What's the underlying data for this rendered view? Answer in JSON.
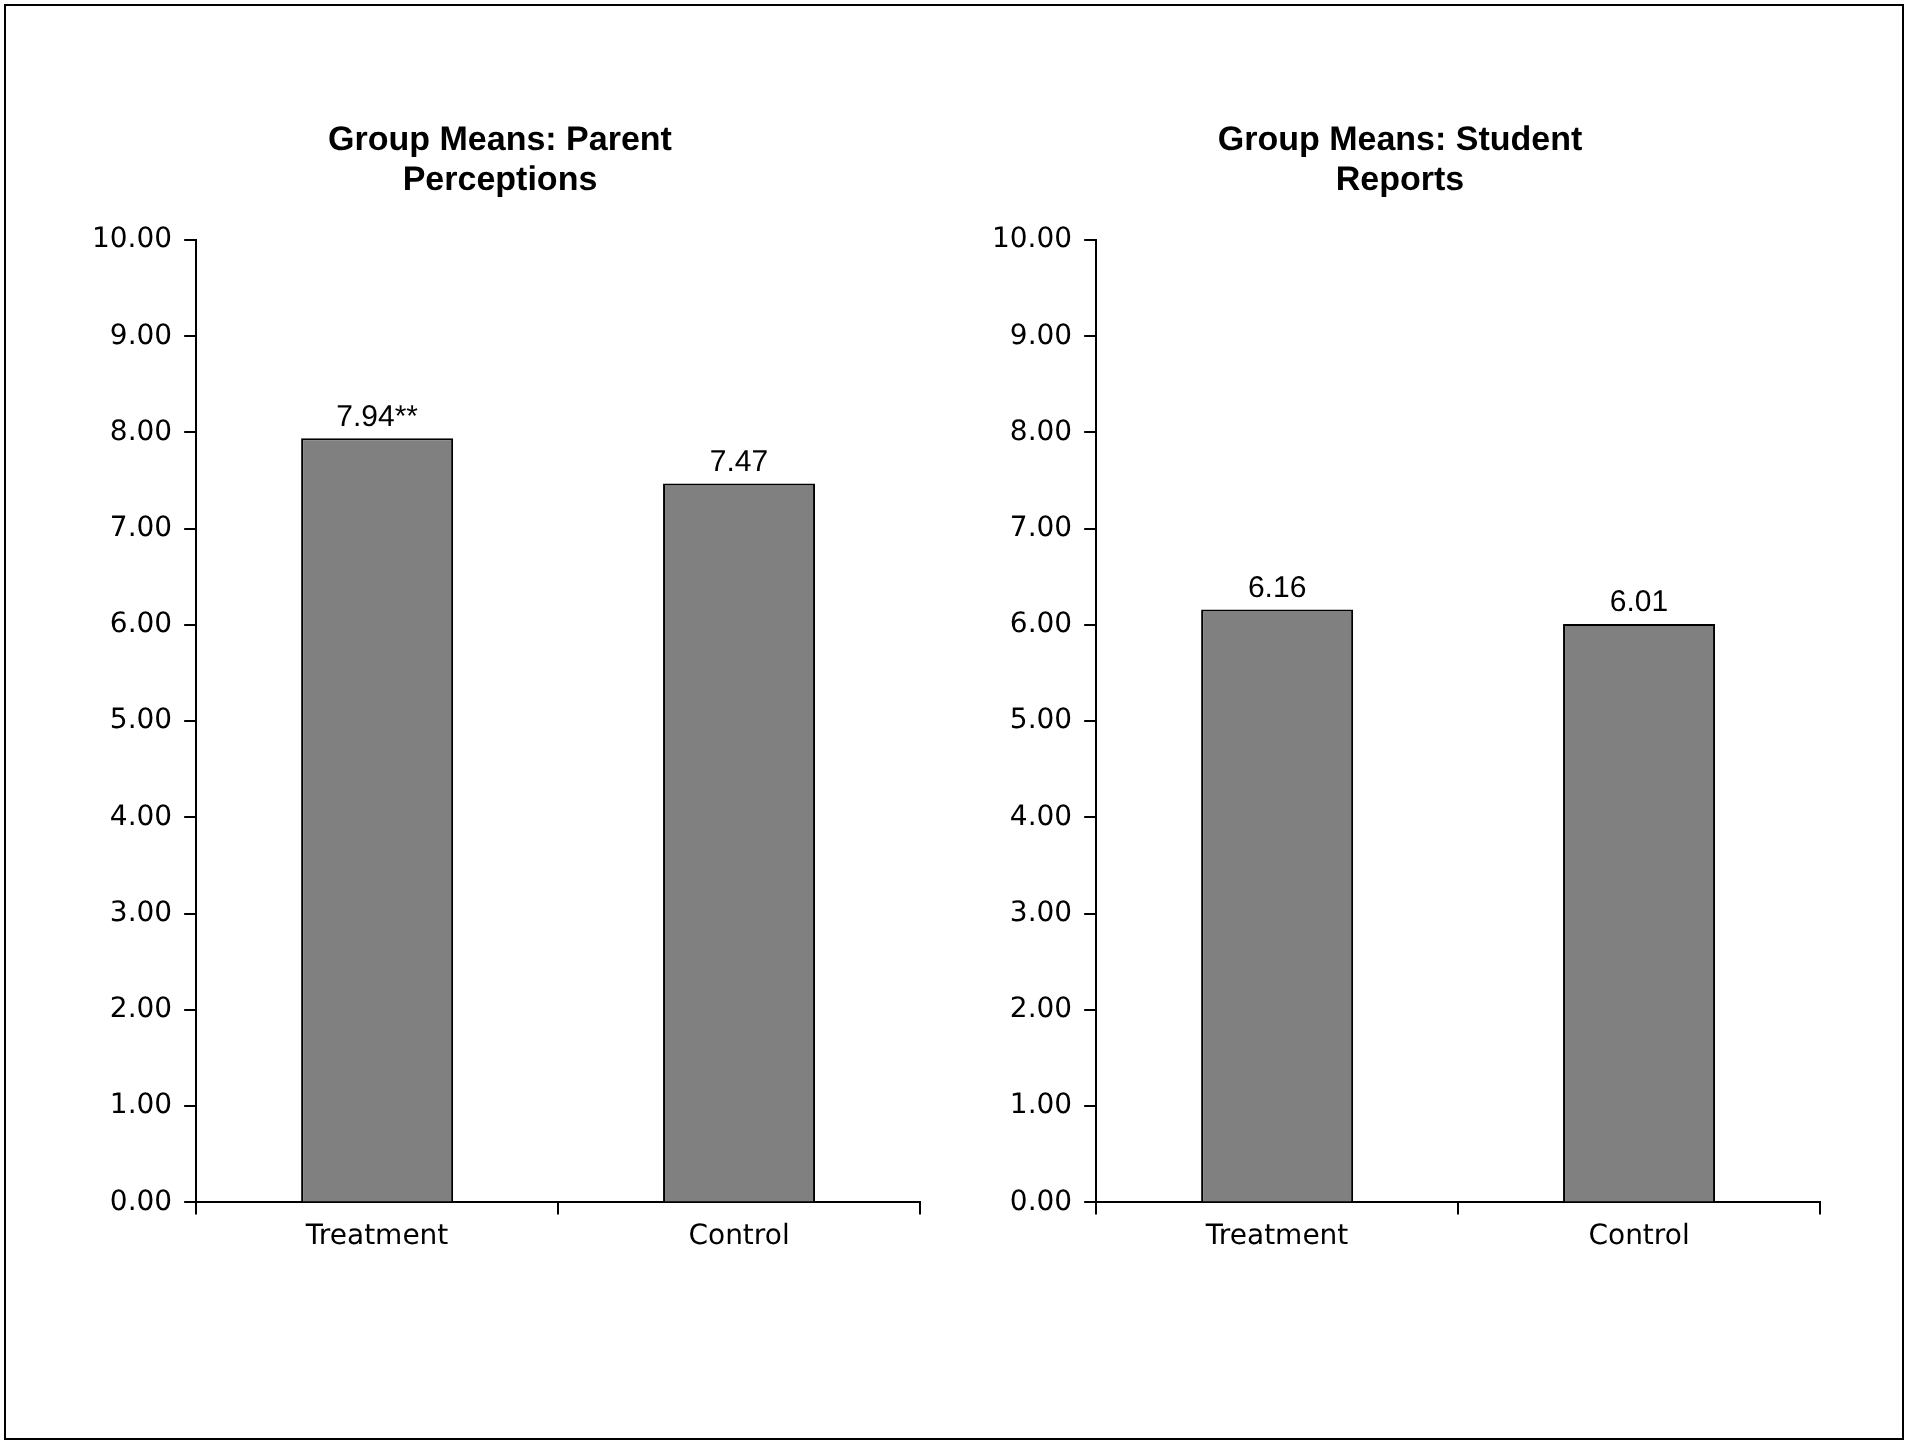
{
  "chart_data": [
    {
      "type": "bar",
      "title": "Group Means: Parent Perceptions",
      "categories": [
        "Treatment",
        "Control"
      ],
      "values": [
        7.94,
        7.47
      ],
      "value_labels": [
        "7.94**",
        "7.47"
      ],
      "color": "#808080",
      "ylim": [
        0,
        10
      ],
      "yticks": [
        {
          "value": 0,
          "label": "0.00"
        },
        {
          "value": 1,
          "label": "1.00"
        },
        {
          "value": 2,
          "label": "2.00"
        },
        {
          "value": 3,
          "label": "3.00"
        },
        {
          "value": 4,
          "label": "4.00"
        },
        {
          "value": 5,
          "label": "5.00"
        },
        {
          "value": 6,
          "label": "6.00"
        },
        {
          "value": 7,
          "label": "7.00"
        },
        {
          "value": 8,
          "label": "8.00"
        },
        {
          "value": 9,
          "label": "9.00"
        },
        {
          "value": 10,
          "label": "10.00"
        }
      ]
    },
    {
      "type": "bar",
      "title": "Group Means: Student Reports",
      "categories": [
        "Treatment",
        "Control"
      ],
      "values": [
        6.16,
        6.01
      ],
      "data_labels": true,
      "color": "#808080",
      "ylim": [
        0,
        10
      ],
      "yticks": [
        {
          "value": 0,
          "label": "0.00"
        },
        {
          "value": 1,
          "label": "1.00"
        },
        {
          "value": 2,
          "label": "2.00"
        },
        {
          "value": 3,
          "label": "3.00"
        },
        {
          "value": 4,
          "label": "4.00"
        },
        {
          "value": 5,
          "label": "5.00"
        },
        {
          "value": 6,
          "label": "6.00"
        },
        {
          "value": 7,
          "label": "7.00"
        },
        {
          "value": 8,
          "label": "8.00"
        },
        {
          "value": 9,
          "label": "9.00"
        },
        {
          "value": 10,
          "label": "10.00"
        }
      ]
    }
  ]
}
